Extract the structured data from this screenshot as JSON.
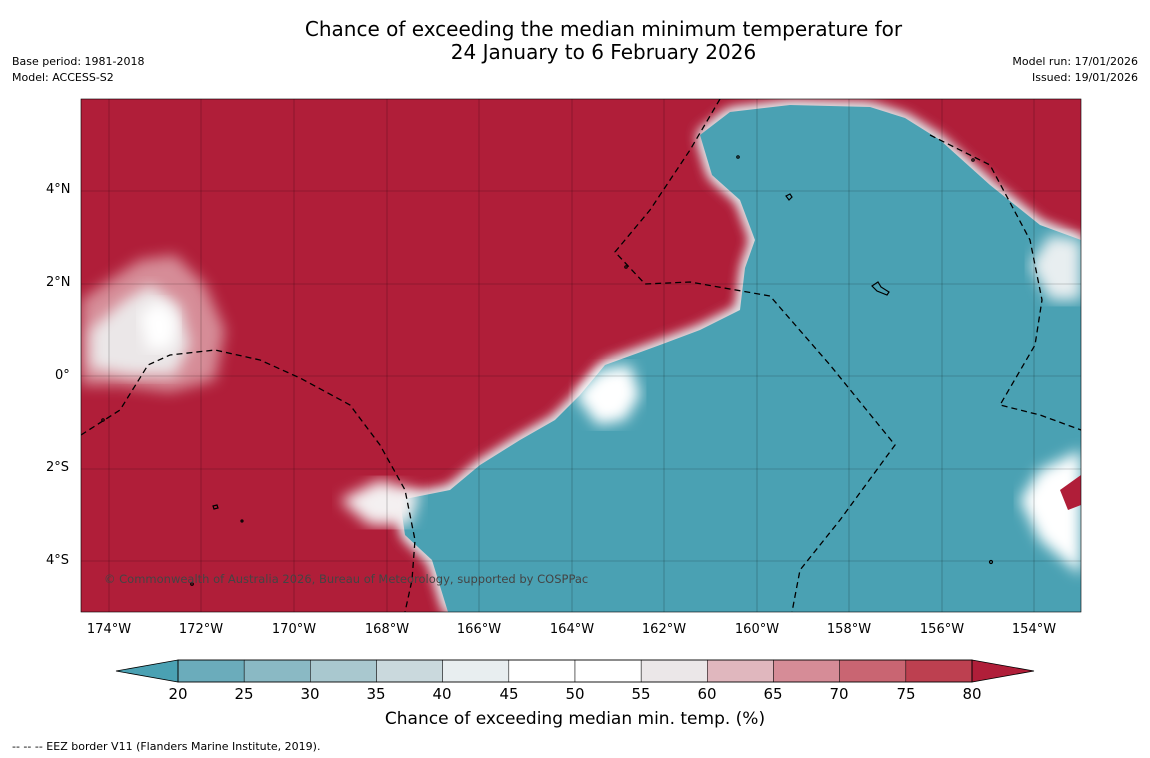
{
  "header": {
    "title_line1": "Chance of exceeding the median minimum temperature for",
    "title_line2": "24 January to 6 February 2026",
    "base_period": "Base period: 1981-2018",
    "model": "Model: ACCESS-S2",
    "model_run": "Model run: 17/01/2026",
    "issued": "Issued: 19/01/2026"
  },
  "map": {
    "lat_labels": [
      "4°N",
      "2°N",
      "0°",
      "2°S",
      "4°S"
    ],
    "lon_labels": [
      "174°W",
      "172°W",
      "170°W",
      "168°W",
      "166°W",
      "164°W",
      "162°W",
      "160°W",
      "158°W",
      "156°W",
      "154°W"
    ],
    "copyright": "© Commonwealth of Australia 2026, Bureau of Meteorology, supported by COSPPac"
  },
  "colorbar": {
    "ticks": [
      "20",
      "25",
      "30",
      "35",
      "40",
      "45",
      "50",
      "55",
      "60",
      "65",
      "70",
      "75",
      "80"
    ],
    "label": "Chance of exceeding median min. temp. (%)",
    "colors": [
      "#4aa1b3",
      "#6bacbb",
      "#8ab9c4",
      "#a9c8cf",
      "#cad9dd",
      "#e8eef0",
      "#ffffff",
      "#ffffff",
      "#ebe7e8",
      "#e0b7be",
      "#d68c97",
      "#c96572",
      "#bd4050",
      "#b01e39"
    ]
  },
  "footer": {
    "legend": "-- -- -- EEZ border V11 (Flanders Marine Institute, 2019)."
  }
}
